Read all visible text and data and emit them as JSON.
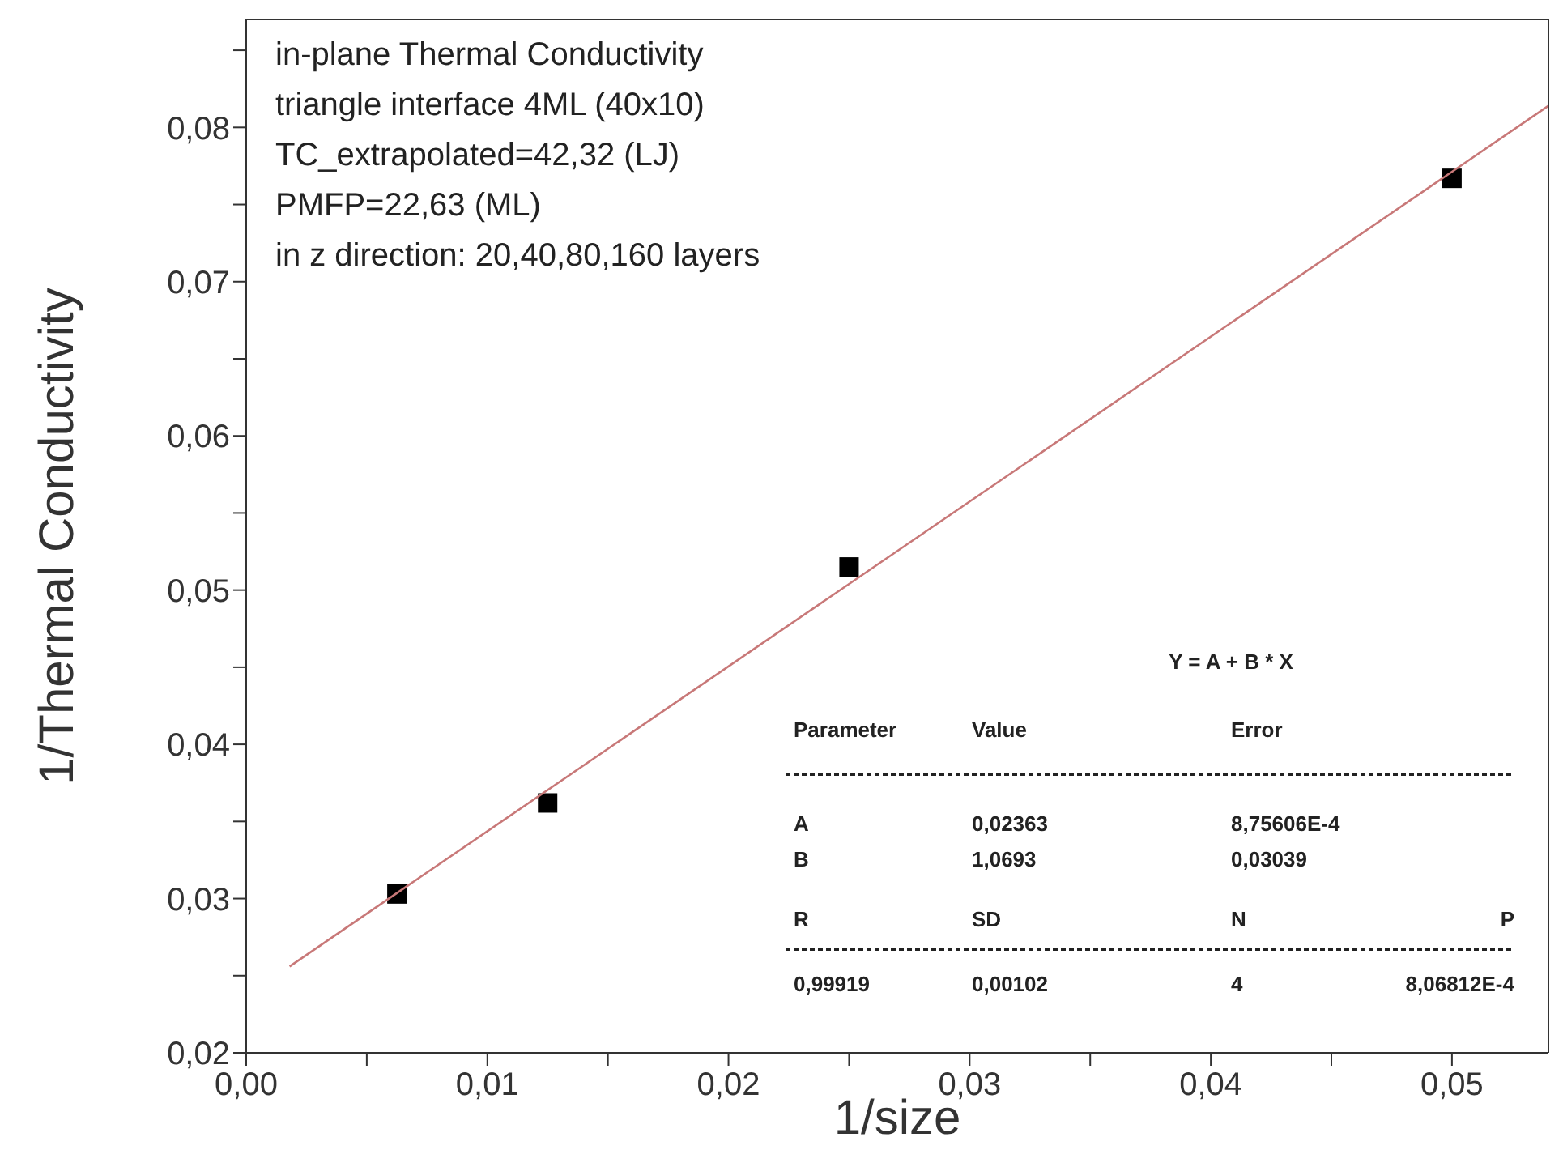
{
  "chart_data": {
    "type": "scatter",
    "xlabel": "1/size",
    "ylabel": "1/Thermal Conductivity",
    "xlim": [
      0,
      0.054
    ],
    "ylim": [
      0.02,
      0.087
    ],
    "xticks": [
      {
        "value": 0,
        "label": "0,00"
      },
      {
        "value": 0.005,
        "label": null
      },
      {
        "value": 0.01,
        "label": "0,01"
      },
      {
        "value": 0.015,
        "label": null
      },
      {
        "value": 0.02,
        "label": "0,02"
      },
      {
        "value": 0.025,
        "label": null
      },
      {
        "value": 0.03,
        "label": "0,03"
      },
      {
        "value": 0.035,
        "label": null
      },
      {
        "value": 0.04,
        "label": "0,04"
      },
      {
        "value": 0.045,
        "label": null
      },
      {
        "value": 0.05,
        "label": "0,05"
      }
    ],
    "yticks": [
      {
        "value": 0.02,
        "label": "0,02"
      },
      {
        "value": 0.025,
        "label": null
      },
      {
        "value": 0.03,
        "label": "0,03"
      },
      {
        "value": 0.035,
        "label": null
      },
      {
        "value": 0.04,
        "label": "0,04"
      },
      {
        "value": 0.045,
        "label": null
      },
      {
        "value": 0.05,
        "label": "0,05"
      },
      {
        "value": 0.055,
        "label": null
      },
      {
        "value": 0.06,
        "label": "0,06"
      },
      {
        "value": 0.065,
        "label": null
      },
      {
        "value": 0.07,
        "label": "0,07"
      },
      {
        "value": 0.075,
        "label": null
      },
      {
        "value": 0.08,
        "label": "0,08"
      },
      {
        "value": 0.085,
        "label": null
      }
    ],
    "marker": "square",
    "series": [
      {
        "color": "#000000",
        "x": [
          0.00625,
          0.0125,
          0.025,
          0.05
        ],
        "values": [
          0.0303,
          0.0362,
          0.0515,
          0.0767
        ]
      },
      {
        "type": "line",
        "marker": "none",
        "color": "#c87878",
        "x": [
          0.0018,
          0.054
        ],
        "values": [
          0.0256,
          0.0814
        ]
      }
    ],
    "annotations": [
      "in-plane Thermal Conductivity",
      "triangle interface 4ML (40x10)",
      "TC_extrapolated=42,32 (LJ)",
      "PMFP=22,63 (ML)",
      "in z direction: 20,40,80,160 layers",
      "Y = A + B * X",
      "Parameter",
      "Value",
      "Error",
      "A",
      "0,02363",
      "8,75606E-4",
      "B",
      "1,0693",
      "0,03039",
      "R",
      "SD",
      "N",
      "P",
      "0,99919",
      "0,00102",
      "4",
      "8,06812E-4"
    ]
  }
}
